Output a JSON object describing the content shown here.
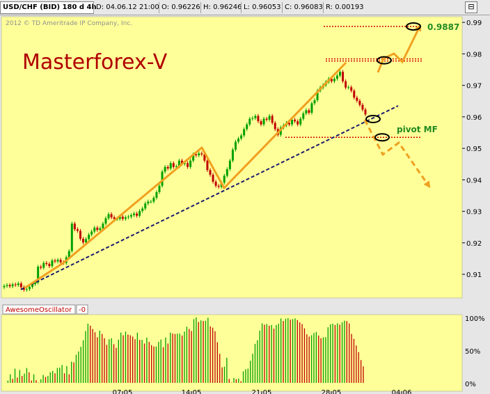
{
  "header": {
    "symbol": "USD/CHF (BID) 180 d 4h",
    "date": "D: 04.06.12 21:00",
    "open": "O: 0.96226",
    "high": "H: 0.96246",
    "low": "L: 0.96053",
    "close": "C: 0.96083",
    "range": "R: 0.00193"
  },
  "copyright": "2012 © TD Ameritrade IP Company, Inc.",
  "watermark": "Masterforex-V",
  "annotations": {
    "target": "0.9887",
    "pivot": "pivot MF"
  },
  "oscillator": {
    "name": "AwesomeOscillator",
    "value": "-0",
    "axis_ticks": [
      "100%",
      "50%",
      "0%"
    ]
  },
  "colors": {
    "plot_bg": "#ffff99",
    "bullish": "#00a000",
    "bearish": "#c00000",
    "trend_line": "#f0a020",
    "support_line": "#1a1a6e",
    "level_line": "#d00000",
    "watermark": "#b00000",
    "annotation_text": "#228b22"
  },
  "chart_data": {
    "type": "candlestick",
    "x_ticks": [
      "07.05",
      "14.05",
      "21.05",
      "28.05",
      "04.06"
    ],
    "y_ticks": [
      0.99,
      0.98,
      0.97,
      0.96,
      0.95,
      0.94,
      0.93,
      0.92,
      0.91
    ],
    "ylim": [
      0.9025,
      0.9918
    ],
    "grid": false,
    "closes": [
      0.9063,
      0.9066,
      0.9062,
      0.9068,
      0.9066,
      0.9071,
      0.9059,
      0.9051,
      0.9053,
      0.906,
      0.9069,
      0.9074,
      0.9124,
      0.9121,
      0.9136,
      0.9133,
      0.9126,
      0.9144,
      0.9141,
      0.9146,
      0.9138,
      0.9136,
      0.9154,
      0.9174,
      0.9261,
      0.9243,
      0.9238,
      0.9213,
      0.9201,
      0.9212,
      0.9226,
      0.9236,
      0.9248,
      0.9241,
      0.9246,
      0.9261,
      0.9278,
      0.9291,
      0.9281,
      0.9276,
      0.9276,
      0.9283,
      0.9276,
      0.9281,
      0.9283,
      0.9288,
      0.9293,
      0.9286,
      0.9301,
      0.9309,
      0.9325,
      0.9331,
      0.9331,
      0.9343,
      0.9361,
      0.9381,
      0.9426,
      0.9441,
      0.9436,
      0.9453,
      0.9441,
      0.9443,
      0.9461,
      0.9451,
      0.9453,
      0.9441,
      0.9461,
      0.9481,
      0.9478,
      0.9484,
      0.9481,
      0.9461,
      0.9431,
      0.9416,
      0.9394,
      0.9381,
      0.9378,
      0.9391,
      0.9413,
      0.9434,
      0.9461,
      0.9496,
      0.9521,
      0.9531,
      0.9541,
      0.9561,
      0.9576,
      0.9594,
      0.9596,
      0.9603,
      0.9586,
      0.9576,
      0.9594,
      0.9591,
      0.9603,
      0.9581,
      0.9561,
      0.9543,
      0.9566,
      0.9573,
      0.9581,
      0.9576,
      0.9591,
      0.9586,
      0.9576,
      0.9594,
      0.9611,
      0.9621,
      0.9613,
      0.9643,
      0.9653,
      0.9683,
      0.9693,
      0.9701,
      0.9711,
      0.9721,
      0.9713,
      0.9721,
      0.9731,
      0.9743,
      0.9713,
      0.9693,
      0.9694,
      0.9683,
      0.9661,
      0.9651,
      0.9638,
      0.9623,
      0.9608
    ],
    "lines": {
      "target_level": 0.9887,
      "resistance_level": 0.9784,
      "pivot_level": 0.9535
    },
    "oscillator_values": [
      0.0,
      0.035,
      0.13,
      0.06,
      0.215,
      0.08,
      0.195,
      0.105,
      0.14,
      0.225,
      0.16,
      0.035,
      0.13,
      0.04,
      0.005,
      0.055,
      0.12,
      0.09,
      0.105,
      0.16,
      0.18,
      0.145,
      0.225,
      0.23,
      0.27,
      0.145,
      0.255,
      0.13,
      0.32,
      0.31,
      0.425,
      0.475,
      0.545,
      0.645,
      0.785,
      0.895,
      0.865,
      0.815,
      0.765,
      0.69,
      0.79,
      0.74,
      0.675,
      0.575,
      0.66,
      0.675,
      0.585,
      0.53,
      0.655,
      0.76,
      0.72,
      0.775,
      0.73,
      0.72,
      0.7,
      0.66,
      0.76,
      0.65,
      0.65,
      0.595,
      0.685,
      0.62,
      0.57,
      0.55,
      0.55,
      0.62,
      0.655,
      0.54,
      0.685,
      0.595,
      0.76,
      0.745,
      0.74,
      0.745,
      0.745,
      0.715,
      0.775,
      0.85,
      0.815,
      0.785,
      0.965,
      0.99,
      0.92,
      0.945,
      0.935,
      0.94,
      0.985,
      0.855,
      0.835,
      0.78,
      0.615,
      0.44,
      0.235,
      0.245,
      0.38,
      0.06,
      0.005,
      0.075,
      0.055,
      0.065,
      0.025,
      0.175,
      0.205,
      0.215,
      0.335,
      0.44,
      0.59,
      0.645,
      0.79,
      0.9,
      0.88,
      0.89,
      0.865,
      0.875,
      0.82,
      0.875,
      0.895,
      0.975,
      0.935,
      0.97,
      0.98,
      0.955,
      0.965,
      0.975,
      0.95,
      0.915,
      0.89,
      0.825,
      0.735,
      0.7,
      0.72,
      0.755,
      0.77,
      0.715,
      0.675,
      0.69,
      0.69,
      0.84,
      0.885,
      0.895,
      0.875,
      0.9,
      0.88,
      0.915,
      0.94,
      0.935,
      0.9,
      0.74,
      0.665,
      0.565,
      0.465,
      0.345,
      0.25
    ]
  }
}
